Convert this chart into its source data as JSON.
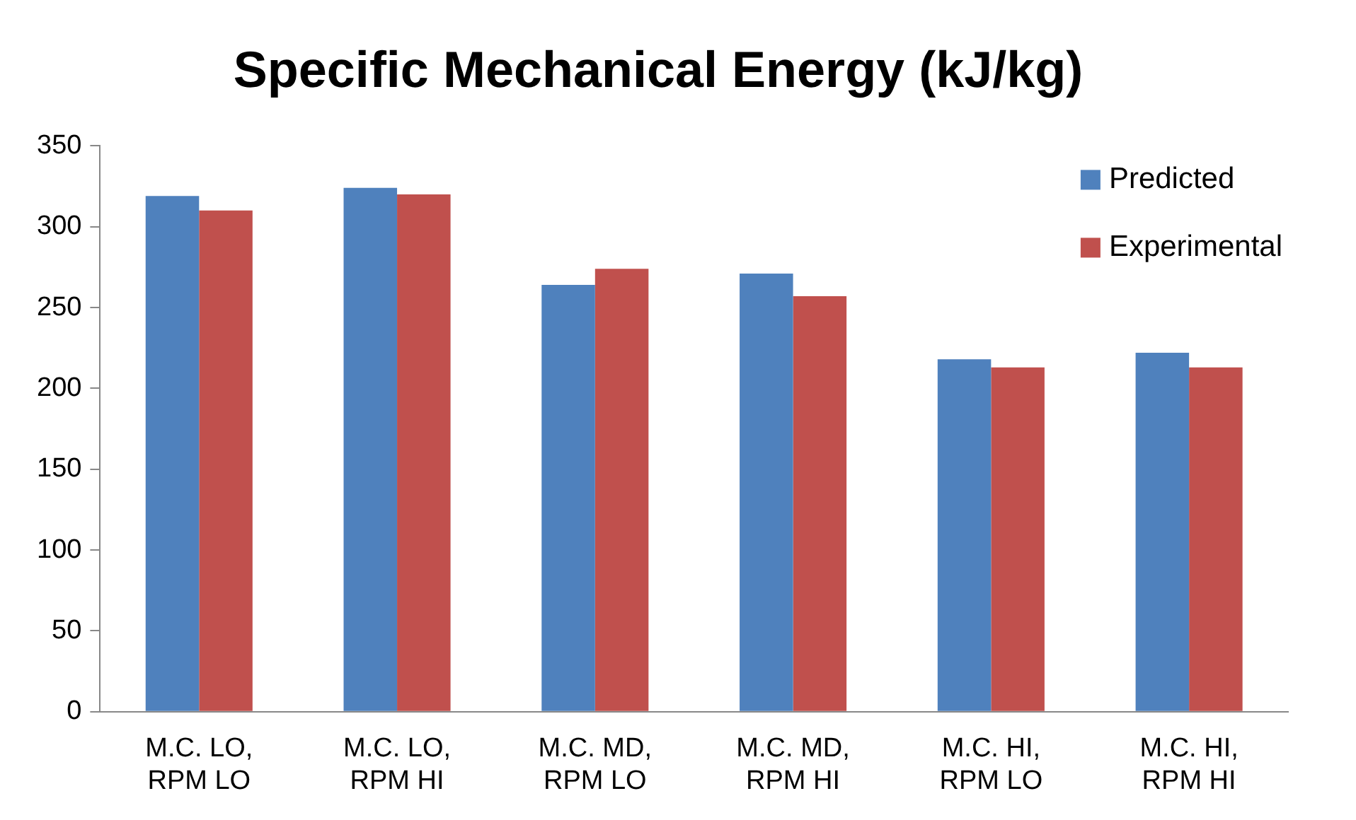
{
  "chart_data": {
    "type": "bar",
    "title": "Specific Mechanical Energy (kJ/kg)",
    "categories": [
      "M.C. LO, RPM LO",
      "M.C. LO, RPM HI",
      "M.C. MD, RPM LO",
      "M.C. MD, RPM HI",
      "M.C. HI, RPM LO",
      "M.C. HI, RPM HI"
    ],
    "series": [
      {
        "name": "Predicted",
        "color": "#4f81bd",
        "values": [
          319,
          324,
          264,
          271,
          218,
          222
        ]
      },
      {
        "name": "Experimental",
        "color": "#c0504d",
        "values": [
          310,
          320,
          274,
          257,
          213,
          213
        ]
      }
    ],
    "ylim": [
      0,
      350
    ],
    "yticks": [
      0,
      50,
      100,
      150,
      200,
      250,
      300,
      350
    ],
    "grid": false,
    "legend": "top right"
  }
}
